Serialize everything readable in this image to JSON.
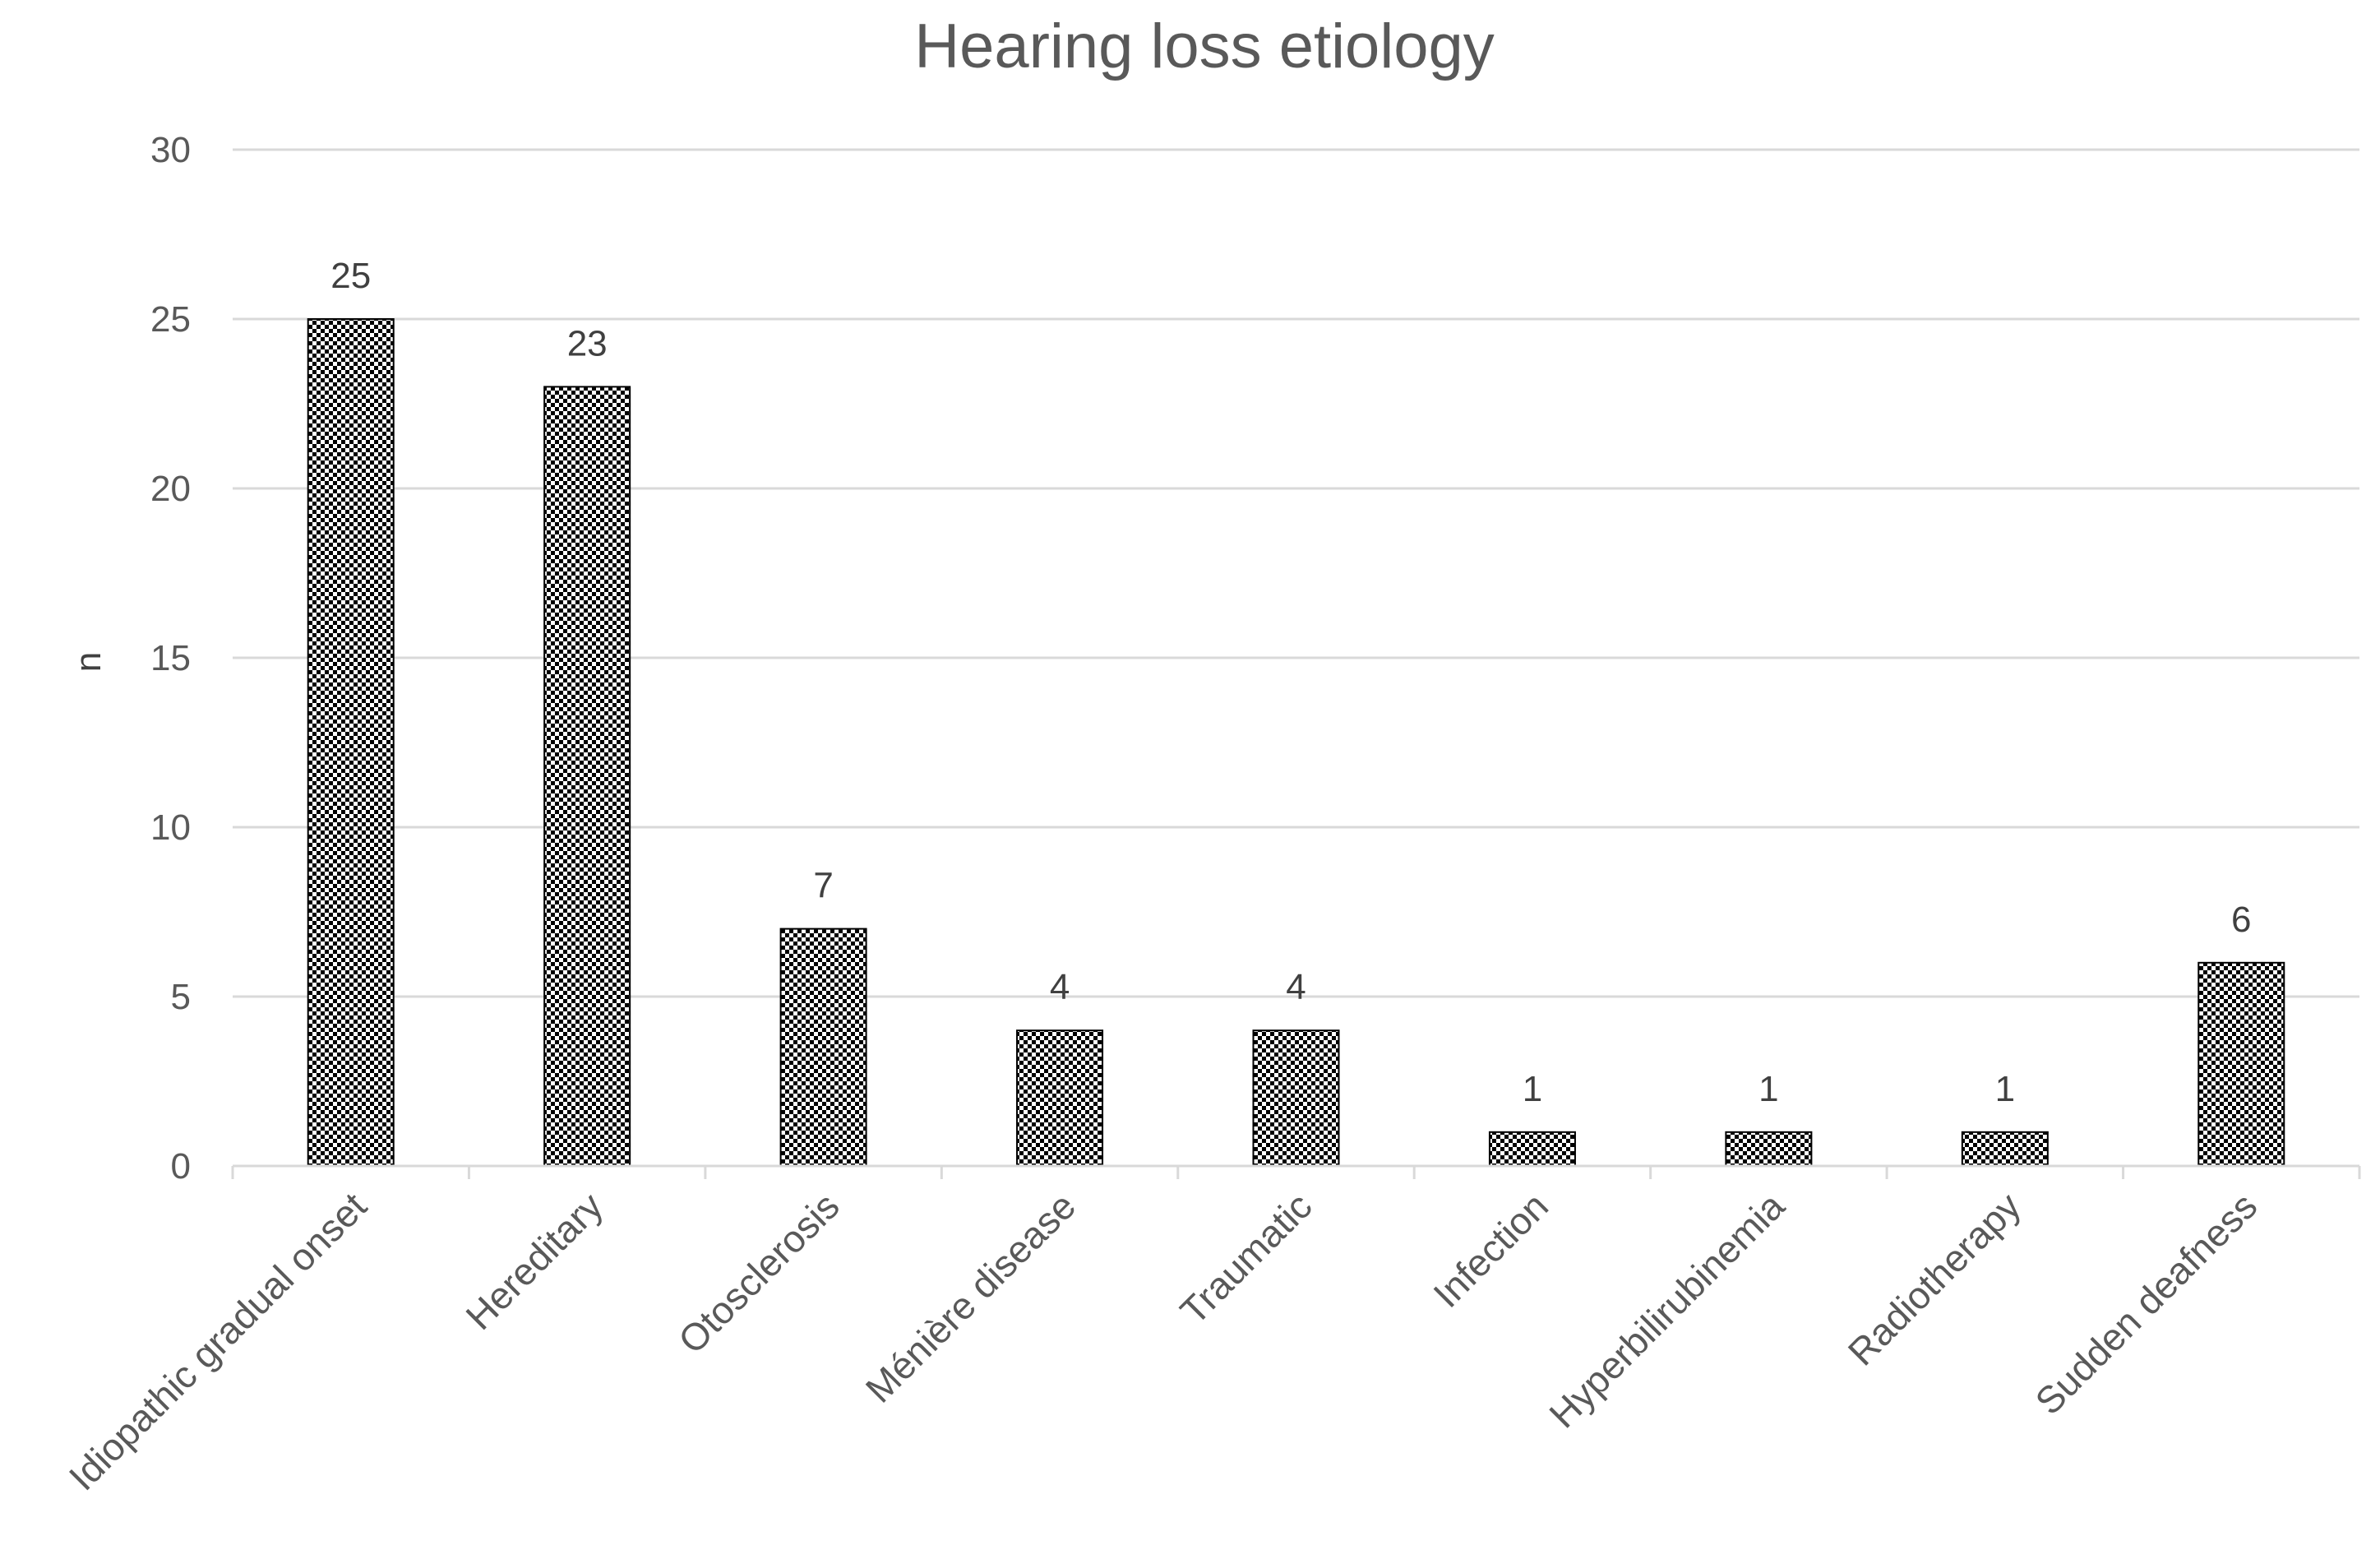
{
  "chart_data": {
    "type": "bar",
    "title": "Hearing loss etiology",
    "xlabel": "",
    "ylabel": "n",
    "ylim": [
      0,
      30
    ],
    "yticks": [
      0,
      5,
      10,
      15,
      20,
      25,
      30
    ],
    "grid": true,
    "categories": [
      "Idiopathic gradual onset",
      "Hereditary",
      "Otosclerosis",
      "Ménière disease",
      "Traumatic",
      "Infection",
      "Hyperbilirubinemia",
      "Radiotherapy",
      "Sudden deafness"
    ],
    "values": [
      25,
      23,
      7,
      4,
      4,
      1,
      1,
      1,
      6
    ],
    "data_labels": [
      "25",
      "23",
      "7",
      "4",
      "4",
      "1",
      "1",
      "1",
      "6"
    ],
    "bar_style": "black-white checkerboard pattern"
  },
  "colors": {
    "bar_fill": "#000000",
    "gridline": "#d9d9d9",
    "text": "#595959"
  }
}
